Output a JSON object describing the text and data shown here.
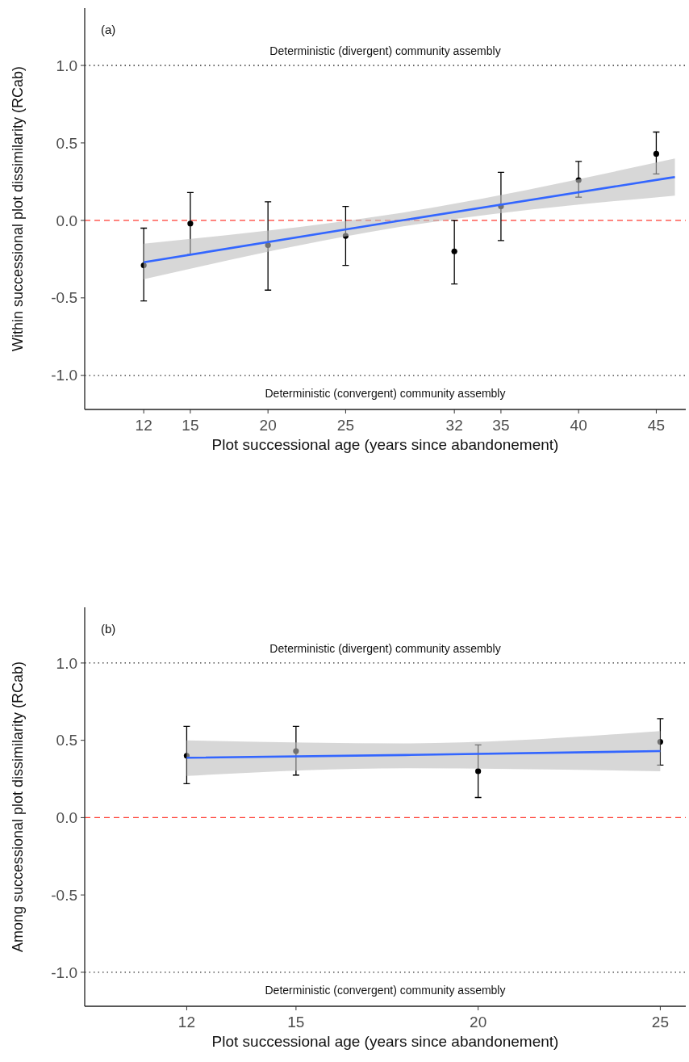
{
  "chart_data": [
    {
      "type": "scatter",
      "xlabel": "Plot successional age (years since abandonement)",
      "ylabel": "Within successional plot dissimilarity (RCab)",
      "annotations": [
        "(a)"
      ],
      "xlim": [
        8.2,
        46.9
      ],
      "xticks": [
        12,
        15,
        20,
        25,
        32,
        35,
        40,
        45
      ],
      "ylim": [
        -1.22,
        1.37
      ],
      "yticks": [
        {
          "value": -1,
          "label": "-1.0"
        },
        {
          "value": -0.5,
          "label": "-0.5"
        },
        {
          "value": 0,
          "label": "0.0"
        },
        {
          "value": 0.5,
          "label": "0.5"
        },
        {
          "value": 1,
          "label": "1.0"
        }
      ],
      "grid": false,
      "ref_lines": [
        {
          "axis": "y",
          "value": 1,
          "label": "Deterministic (divergent) community assembly",
          "color": "#333333",
          "line_style": "dotted"
        },
        {
          "axis": "y",
          "value": 0,
          "label": null,
          "color": "#ff3b30",
          "line_style": "dashed"
        },
        {
          "axis": "y",
          "value": -1,
          "label": "Deterministic (convergent) community assembly",
          "color": "#333333",
          "line_style": "dotted"
        }
      ],
      "series": [
        {
          "color": "#000000",
          "marker": "circle",
          "x": [
            12,
            15,
            20,
            25,
            32,
            35,
            40,
            45
          ],
          "values": [
            -0.29,
            -0.02,
            -0.16,
            -0.1,
            -0.2,
            0.09,
            0.26,
            0.43
          ],
          "errors": [
            [
              -0.52,
              -0.05
            ],
            [
              -0.22,
              0.18
            ],
            [
              -0.45,
              0.12
            ],
            [
              -0.29,
              0.09
            ],
            [
              -0.41,
              0.0
            ],
            [
              -0.13,
              0.31
            ],
            [
              0.15,
              0.38
            ],
            [
              0.3,
              0.57
            ]
          ]
        },
        {
          "type": "line",
          "color": "#3366ff",
          "x": [
            12,
            28,
            46.2
          ],
          "values": [
            -0.27,
            -0.01,
            0.28
          ],
          "lower": [
            -0.38,
            -0.05,
            0.16
          ],
          "upper": [
            -0.15,
            0.04,
            0.4
          ]
        }
      ]
    },
    {
      "type": "scatter",
      "xlabel": "Plot successional age (years since abandonement)",
      "ylabel": "Among successional plot dissimilarity (RCab)",
      "annotations": [
        "(b)"
      ],
      "xlim": [
        9.2,
        25.7
      ],
      "xticks": [
        12,
        15,
        20,
        25
      ],
      "ylim": [
        -1.22,
        1.36
      ],
      "yticks": [
        {
          "value": -1,
          "label": "-1.0"
        },
        {
          "value": -0.5,
          "label": "-0.5"
        },
        {
          "value": 0,
          "label": "0.0"
        },
        {
          "value": 0.5,
          "label": "0.5"
        },
        {
          "value": 1,
          "label": "1.0"
        }
      ],
      "grid": false,
      "ref_lines": [
        {
          "axis": "y",
          "value": 1,
          "label": "Deterministic (divergent) community assembly",
          "color": "#333333",
          "line_style": "dotted"
        },
        {
          "axis": "y",
          "value": 0,
          "label": null,
          "color": "#ff3b30",
          "line_style": "dashed"
        },
        {
          "axis": "y",
          "value": -1,
          "label": "Deterministic (convergent) community assembly",
          "color": "#333333",
          "line_style": "dotted"
        }
      ],
      "series": [
        {
          "color": "#000000",
          "marker": "circle",
          "x": [
            12,
            15,
            20,
            25
          ],
          "values": [
            0.4,
            0.43,
            0.3,
            0.49
          ],
          "errors": [
            [
              0.22,
              0.59
            ],
            [
              0.275,
              0.59
            ],
            [
              0.13,
              0.47
            ],
            [
              0.34,
              0.64
            ]
          ]
        },
        {
          "type": "line",
          "color": "#3366ff",
          "x": [
            12,
            18,
            25
          ],
          "values": [
            0.387,
            0.405,
            0.43
          ],
          "lower": [
            0.27,
            0.32,
            0.3
          ],
          "upper": [
            0.5,
            0.48,
            0.56
          ]
        }
      ]
    }
  ]
}
